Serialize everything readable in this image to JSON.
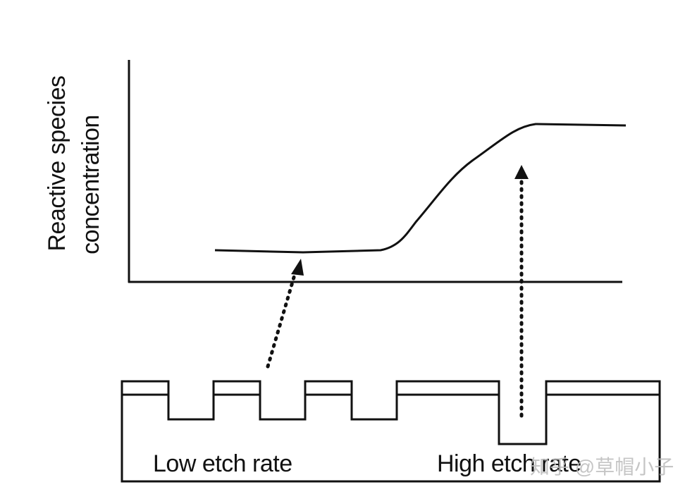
{
  "axis_label": [
    "Reactive species",
    "concentration"
  ],
  "labels": [
    "Low etch rate",
    "High etch rate"
  ],
  "watermark": "知乎 @草帽小子"
}
